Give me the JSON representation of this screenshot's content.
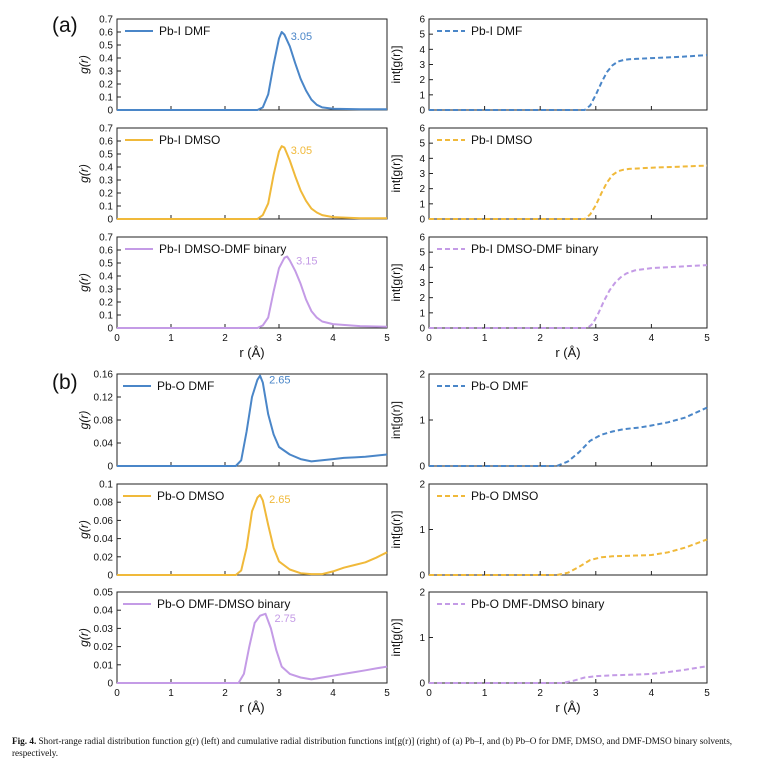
{
  "caption": {
    "label": "Fig. 4.",
    "text": "Short-range radial distribution function g(r) (left) and cumulative radial distribution functions int[g(r)] (right) of (a) Pb–I, and (b) Pb–O for DMF, DMSO, and DMF-DMSO binary solvents, respectively."
  },
  "colors": {
    "DMF": "#4a86c8",
    "DMSO": "#f0b93a",
    "binary": "#c49be6"
  },
  "chart_data": [
    {
      "panel": "(a)",
      "type": "line",
      "xlabel": "r (Å)",
      "xlim": [
        0,
        5
      ],
      "left": {
        "ylabel": "g(r)",
        "ylim": [
          0,
          0.7
        ],
        "yticks": [
          "0",
          "0.1",
          "0.2",
          "0.3",
          "0.4",
          "0.5",
          "0.6",
          "0.7"
        ],
        "series": [
          {
            "name": "Pb-I DMF",
            "color": "#4a86c8",
            "peak_label": "3.05",
            "x": [
              0,
              2.6,
              2.7,
              2.8,
              2.9,
              3.0,
              3.05,
              3.1,
              3.2,
              3.3,
              3.4,
              3.5,
              3.6,
              3.7,
              3.8,
              4.0,
              4.5,
              5.0
            ],
            "y": [
              0,
              0,
              0.02,
              0.12,
              0.35,
              0.55,
              0.6,
              0.58,
              0.49,
              0.36,
              0.24,
              0.15,
              0.08,
              0.04,
              0.02,
              0.01,
              0.005,
              0.005
            ]
          },
          {
            "name": "Pb-I DMSO",
            "color": "#f0b93a",
            "peak_label": "3.05",
            "x": [
              0,
              2.6,
              2.7,
              2.8,
              2.9,
              3.0,
              3.05,
              3.1,
              3.2,
              3.3,
              3.4,
              3.5,
              3.6,
              3.7,
              3.8,
              4.0,
              4.5,
              5.0
            ],
            "y": [
              0,
              0,
              0.03,
              0.12,
              0.34,
              0.52,
              0.56,
              0.55,
              0.45,
              0.33,
              0.22,
              0.14,
              0.08,
              0.05,
              0.03,
              0.015,
              0.005,
              0.005
            ]
          },
          {
            "name": "Pb-I DMSO-DMF binary",
            "color": "#c49be6",
            "peak_label": "3.15",
            "x": [
              0,
              2.6,
              2.7,
              2.8,
              2.9,
              3.0,
              3.1,
              3.15,
              3.2,
              3.3,
              3.4,
              3.5,
              3.6,
              3.7,
              3.8,
              4.0,
              4.5,
              5.0
            ],
            "y": [
              0,
              0,
              0.02,
              0.08,
              0.28,
              0.46,
              0.54,
              0.55,
              0.52,
              0.44,
              0.34,
              0.22,
              0.13,
              0.08,
              0.05,
              0.03,
              0.015,
              0.01
            ]
          }
        ]
      },
      "right": {
        "ylabel": "int[g(r)]",
        "ylim": [
          0,
          6
        ],
        "yticks": [
          "0",
          "1",
          "2",
          "3",
          "4",
          "5",
          "6"
        ],
        "series": [
          {
            "name": "Pb-I DMF",
            "color": "#4a86c8",
            "x": [
              0,
              2.8,
              2.9,
              3.0,
              3.1,
              3.2,
              3.3,
              3.4,
              3.5,
              3.6,
              4.0,
              4.5,
              5.0
            ],
            "y": [
              0,
              0,
              0.3,
              1.0,
              1.8,
              2.5,
              2.95,
              3.2,
              3.3,
              3.35,
              3.42,
              3.5,
              3.62
            ]
          },
          {
            "name": "Pb-I DMSO",
            "color": "#f0b93a",
            "x": [
              0,
              2.8,
              2.9,
              3.0,
              3.1,
              3.2,
              3.3,
              3.4,
              3.5,
              3.6,
              4.0,
              4.5,
              5.0
            ],
            "y": [
              0,
              0,
              0.3,
              0.9,
              1.7,
              2.4,
              2.9,
              3.15,
              3.25,
              3.3,
              3.38,
              3.45,
              3.52
            ]
          },
          {
            "name": "Pb-I DMSO-DMF binary",
            "color": "#c49be6",
            "x": [
              0,
              2.85,
              2.95,
              3.05,
              3.15,
              3.25,
              3.35,
              3.45,
              3.55,
              3.7,
              4.0,
              4.5,
              5.0
            ],
            "y": [
              0,
              0,
              0.3,
              1.0,
              1.8,
              2.5,
              3.0,
              3.35,
              3.6,
              3.8,
              3.95,
              4.05,
              4.15
            ]
          }
        ]
      }
    },
    {
      "panel": "(b)",
      "type": "line",
      "xlabel": "r (Å)",
      "xlim": [
        0,
        5
      ],
      "left": [
        {
          "ylabel": "g(r)",
          "ylim": [
            0,
            0.16
          ],
          "yticks": [
            "0",
            "0.04",
            "0.08",
            "0.12",
            "0.16"
          ],
          "ytick_values": [
            0,
            0.04,
            0.08,
            0.12,
            0.16
          ],
          "series": [
            {
              "name": "Pb-O DMF",
              "color": "#4a86c8",
              "peak_label": "2.65",
              "x": [
                0,
                2.2,
                2.3,
                2.4,
                2.5,
                2.6,
                2.65,
                2.7,
                2.8,
                2.9,
                3.0,
                3.2,
                3.4,
                3.6,
                3.8,
                4.0,
                4.2,
                4.4,
                4.6,
                4.8,
                5.0
              ],
              "y": [
                0,
                0,
                0.01,
                0.06,
                0.12,
                0.15,
                0.157,
                0.145,
                0.09,
                0.055,
                0.033,
                0.02,
                0.012,
                0.008,
                0.01,
                0.012,
                0.014,
                0.015,
                0.016,
                0.018,
                0.02
              ]
            }
          ]
        },
        {
          "ylabel": "g(r)",
          "ylim": [
            0,
            0.1
          ],
          "yticks": [
            "0",
            "0.02",
            "0.04",
            "0.06",
            "0.08",
            "0.1"
          ],
          "ytick_values": [
            0,
            0.02,
            0.04,
            0.06,
            0.08,
            0.1
          ],
          "series": [
            {
              "name": "Pb-O DMSO",
              "color": "#f0b93a",
              "peak_label": "2.65",
              "x": [
                0,
                2.2,
                2.3,
                2.4,
                2.5,
                2.6,
                2.65,
                2.7,
                2.8,
                2.9,
                3.0,
                3.2,
                3.4,
                3.6,
                3.8,
                4.0,
                4.2,
                4.4,
                4.6,
                4.8,
                5.0
              ],
              "y": [
                0,
                0,
                0.005,
                0.03,
                0.07,
                0.085,
                0.088,
                0.082,
                0.055,
                0.03,
                0.015,
                0.006,
                0.002,
                0.001,
                0.001,
                0.004,
                0.008,
                0.011,
                0.014,
                0.019,
                0.025
              ]
            }
          ]
        },
        {
          "ylabel": "g(r)",
          "ylim": [
            0,
            0.05
          ],
          "yticks": [
            "0",
            "0.01",
            "0.02",
            "0.03",
            "0.04",
            "0.05"
          ],
          "ytick_values": [
            0,
            0.01,
            0.02,
            0.03,
            0.04,
            0.05
          ],
          "series": [
            {
              "name": "Pb-O DMF-DMSO binary",
              "color": "#c49be6",
              "peak_label": "2.75",
              "x": [
                0,
                2.25,
                2.35,
                2.45,
                2.55,
                2.65,
                2.75,
                2.85,
                2.95,
                3.05,
                3.2,
                3.4,
                3.6,
                3.8,
                4.0,
                4.2,
                4.4,
                4.6,
                4.8,
                5.0
              ],
              "y": [
                0,
                0,
                0.005,
                0.02,
                0.033,
                0.037,
                0.038,
                0.03,
                0.018,
                0.009,
                0.005,
                0.003,
                0.002,
                0.003,
                0.004,
                0.005,
                0.006,
                0.007,
                0.008,
                0.009
              ]
            }
          ]
        }
      ],
      "right": {
        "ylabel": "int[g(r)]",
        "ylim": [
          0,
          2
        ],
        "yticks": [
          "0",
          "1",
          "2"
        ],
        "series": [
          {
            "name": "Pb-O DMF",
            "color": "#4a86c8",
            "x": [
              0,
              2.3,
              2.5,
              2.7,
              2.9,
              3.1,
              3.3,
              3.5,
              3.8,
              4.0,
              4.3,
              4.6,
              5.0
            ],
            "y": [
              0,
              0,
              0.1,
              0.3,
              0.55,
              0.68,
              0.75,
              0.8,
              0.84,
              0.88,
              0.95,
              1.05,
              1.27
            ]
          },
          {
            "name": "Pb-O DMSO",
            "color": "#f0b93a",
            "x": [
              0,
              2.3,
              2.5,
              2.7,
              2.9,
              3.1,
              3.3,
              3.5,
              3.8,
              4.0,
              4.3,
              4.6,
              5.0
            ],
            "y": [
              0,
              0,
              0.05,
              0.18,
              0.33,
              0.39,
              0.41,
              0.42,
              0.43,
              0.44,
              0.5,
              0.6,
              0.78
            ]
          },
          {
            "name": "Pb-O DMF-DMSO binary",
            "color": "#c49be6",
            "x": [
              0,
              2.4,
              2.6,
              2.8,
              3.0,
              3.3,
              3.6,
              4.0,
              4.3,
              4.6,
              5.0
            ],
            "y": [
              0,
              0,
              0.05,
              0.12,
              0.15,
              0.17,
              0.18,
              0.2,
              0.24,
              0.29,
              0.37
            ]
          }
        ]
      }
    }
  ]
}
